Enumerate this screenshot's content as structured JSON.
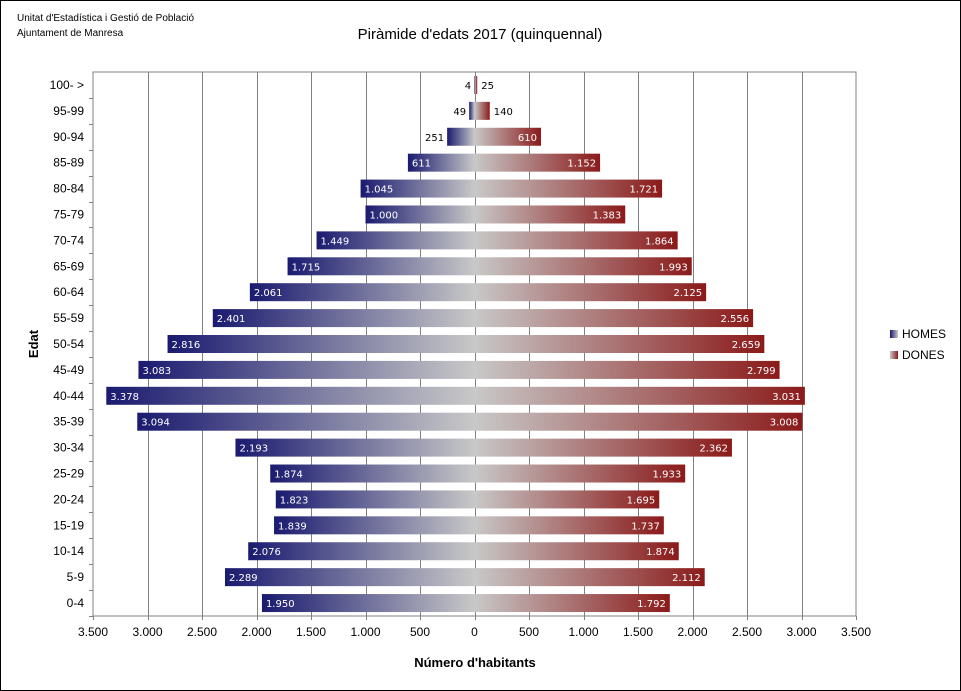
{
  "header": {
    "org_line1": "Unitat d'Estadística i Gestió de Població",
    "org_line2": "Ajuntament de Manresa"
  },
  "chart_data": {
    "type": "bar",
    "orientation": "horizontal-pyramid",
    "title": "Piràmide d'edats 2017 (quinquennal)",
    "xlabel": "Número d'habitants",
    "ylabel": "Edat",
    "xlim": [
      -3500,
      3500
    ],
    "x_ticks": [
      -3500,
      -3000,
      -2500,
      -2000,
      -1500,
      -1000,
      -500,
      0,
      500,
      1000,
      1500,
      2000,
      2500,
      3000,
      3500
    ],
    "x_tick_labels": [
      "3.500",
      "3.000",
      "2.500",
      "2.000",
      "1.500",
      "1.000",
      "500",
      "0",
      "500",
      "1.000",
      "1.500",
      "2.000",
      "2.500",
      "3.000",
      "3.500"
    ],
    "grid": "vertical",
    "legend_position": "right",
    "categories": [
      "0-4",
      "5-9",
      "10-14",
      "15-19",
      "20-24",
      "25-29",
      "30-34",
      "35-39",
      "40-44",
      "45-49",
      "50-54",
      "55-59",
      "60-64",
      "65-69",
      "70-74",
      "75-79",
      "80-84",
      "85-89",
      "90-94",
      "95-99",
      "100- >"
    ],
    "series": [
      {
        "name": "HOMES",
        "color": "#1a1a70",
        "values": [
          1950,
          2289,
          2076,
          1839,
          1823,
          1874,
          2193,
          3094,
          3378,
          3083,
          2816,
          2401,
          2061,
          1715,
          1449,
          1000,
          1045,
          611,
          251,
          49,
          4
        ],
        "labels": [
          "1.950",
          "2.289",
          "2.076",
          "1.839",
          "1.823",
          "1.874",
          "2.193",
          "3.094",
          "3.378",
          "3.083",
          "2.816",
          "2.401",
          "2.061",
          "1.715",
          "1.449",
          "1.000",
          "1.045",
          "611",
          "251",
          "49",
          "4"
        ]
      },
      {
        "name": "DONES",
        "color": "#8b1a1a",
        "values": [
          1792,
          2112,
          1874,
          1737,
          1695,
          1933,
          2362,
          3008,
          3031,
          2799,
          2659,
          2556,
          2125,
          1993,
          1864,
          1383,
          1721,
          1152,
          610,
          140,
          25
        ],
        "labels": [
          "1.792",
          "2.112",
          "1.874",
          "1.737",
          "1.695",
          "1.933",
          "2.362",
          "3.008",
          "3.031",
          "2.799",
          "2.659",
          "2.556",
          "2.125",
          "1.993",
          "1.864",
          "1.383",
          "1.721",
          "1.152",
          "610",
          "140",
          "25"
        ]
      }
    ]
  }
}
